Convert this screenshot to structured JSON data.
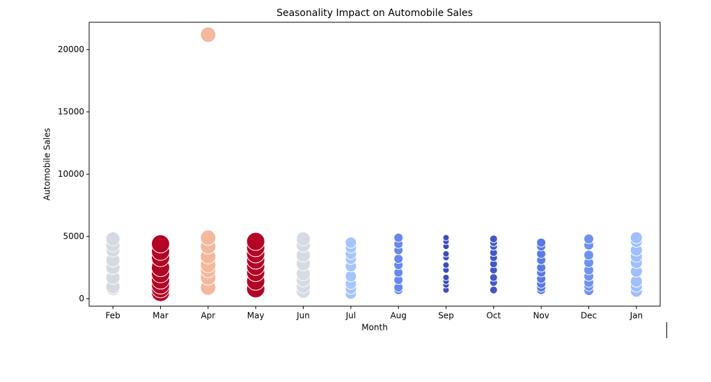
{
  "chart_data": {
    "type": "scatter",
    "title": "Seasonality Impact on Automobile Sales",
    "x_label": "Month",
    "y_label": "Automobile Sales",
    "categories": [
      "Feb",
      "Mar",
      "Apr",
      "May",
      "Jun",
      "Jul",
      "Aug",
      "Sep",
      "Oct",
      "Nov",
      "Dec",
      "Jan"
    ],
    "ylim": [
      -600,
      22200
    ],
    "yticks": [
      0,
      5000,
      10000,
      15000,
      20000
    ],
    "series": [
      {
        "color": "#d5d9e0",
        "size": 10,
        "values": [
          800,
          950,
          1700,
          2500,
          3100,
          3900,
          4300,
          4800
        ]
      },
      {
        "color": "#b40426",
        "size": 13,
        "values": [
          500,
          800,
          1100,
          1500,
          2000,
          2500,
          3300,
          3800,
          4400
        ]
      },
      {
        "color": "#f4b89c",
        "size": 11,
        "values": [
          900,
          1700,
          2300,
          2700,
          3400,
          4200,
          4900,
          21200
        ]
      },
      {
        "color": "#b40426",
        "size": 13,
        "values": [
          800,
          1400,
          2100,
          2600,
          3100,
          3600,
          4100,
          4600
        ]
      },
      {
        "color": "#d6dbe2",
        "size": 10,
        "values": [
          600,
          1000,
          1500,
          2000,
          2800,
          3500,
          4300,
          4800
        ]
      },
      {
        "color": "#a6c4fe",
        "size": 8,
        "values": [
          400,
          800,
          1200,
          1800,
          2600,
          3200,
          3600,
          4100,
          4500
        ]
      },
      {
        "color": "#6788ee",
        "size": 6.5,
        "values": [
          700,
          900,
          1500,
          2100,
          2700,
          3200,
          3900,
          4400,
          4900
        ]
      },
      {
        "color": "#3b4cc0",
        "size": 4.5,
        "values": [
          700,
          1100,
          1400,
          1700,
          2300,
          2700,
          3300,
          3600,
          4200,
          4600,
          4900
        ]
      },
      {
        "color": "#4257c9",
        "size": 5.5,
        "values": [
          700,
          1300,
          1700,
          2300,
          2800,
          3300,
          3700,
          4200,
          4500,
          4800
        ]
      },
      {
        "color": "#5b7ae5",
        "size": 6.5,
        "values": [
          700,
          900,
          1200,
          1600,
          2100,
          2500,
          3100,
          3600,
          4200,
          4500
        ]
      },
      {
        "color": "#6f92f3",
        "size": 7,
        "values": [
          650,
          1000,
          1300,
          1800,
          2300,
          2900,
          3500,
          4300,
          4800
        ]
      },
      {
        "color": "#9fbfff",
        "size": 8.5,
        "values": [
          600,
          1000,
          1400,
          2200,
          2900,
          3400,
          3900,
          4600,
          4900
        ]
      }
    ]
  }
}
